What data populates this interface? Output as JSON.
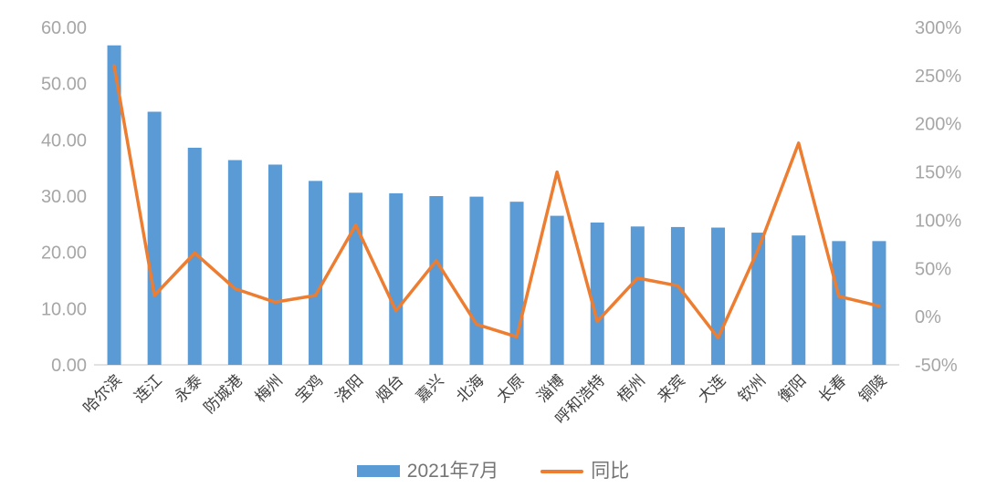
{
  "chart_data": {
    "type": "combo",
    "categories": [
      "哈尔滨",
      "连江",
      "永泰",
      "防城港",
      "梅州",
      "宝鸡",
      "洛阳",
      "烟台",
      "嘉兴",
      "北海",
      "太原",
      "淄博",
      "呼和浩特",
      "梧州",
      "来宾",
      "大连",
      "钦州",
      "衡阳",
      "长春",
      "铜陵"
    ],
    "series": [
      {
        "name": "2021年7月",
        "type": "bar",
        "axis": "left",
        "color": "#5B9BD5",
        "values": [
          56.8,
          45.0,
          38.6,
          36.4,
          35.6,
          32.7,
          30.6,
          30.5,
          30.0,
          29.9,
          29.0,
          26.5,
          25.3,
          24.6,
          24.5,
          24.4,
          23.5,
          23.0,
          22.0,
          22.0
        ]
      },
      {
        "name": "同比",
        "type": "line",
        "axis": "right",
        "color": "#ED7D31",
        "values_pct": [
          260,
          22,
          66,
          29,
          15,
          22,
          95,
          6,
          58,
          -8,
          -21,
          150,
          -5,
          40,
          32,
          -22,
          70,
          180,
          21,
          11
        ]
      }
    ],
    "left_axis": {
      "min": 0,
      "max": 60,
      "ticks": [
        "0.00",
        "10.00",
        "20.00",
        "30.00",
        "40.00",
        "50.00",
        "60.00"
      ]
    },
    "right_axis": {
      "min": -50,
      "max": 300,
      "ticks": [
        "-50%",
        "0%",
        "50%",
        "100%",
        "150%",
        "200%",
        "250%",
        "300%"
      ]
    },
    "legend": [
      "2021年7月",
      "同比"
    ],
    "grid": "off",
    "legend_position": "bottom-center",
    "colors": {
      "bar": "#5B9BD5",
      "line": "#ED7D31",
      "axis_tick_text": "#A6A6A6",
      "category_text": "#404040",
      "legend_text": "#757575",
      "baseline": "#D9D9D9"
    }
  }
}
